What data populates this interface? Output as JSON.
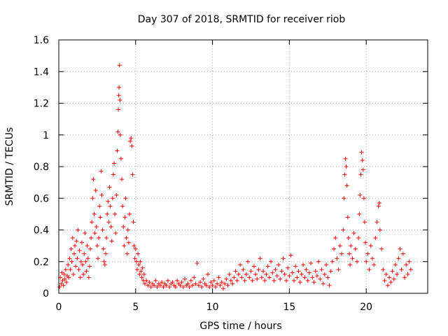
{
  "chart_data": {
    "type": "scatter",
    "title": "Day 307 of 2018, SRMTID for receiver riob",
    "xlabel": "GPS time / hours",
    "ylabel": "SRMTID / TECUs",
    "xlim": [
      0,
      24
    ],
    "ylim": [
      0,
      1.6
    ],
    "x_ticks": [
      0,
      5,
      10,
      15,
      20
    ],
    "x_tick_labels": [
      "0",
      "5",
      "10",
      "15",
      "20"
    ],
    "y_ticks": [
      0,
      0.2,
      0.4,
      0.6,
      0.8,
      1.0,
      1.2,
      1.4,
      1.6
    ],
    "y_tick_labels": [
      "0",
      "0.2",
      "0.4",
      "0.6",
      "0.8",
      "1",
      "1.2",
      "1.4",
      "1.6"
    ],
    "grid": true,
    "marker": "+",
    "color": "#ff0000",
    "series": [
      {
        "name": "SRMTID",
        "points": [
          [
            0.05,
            0.04
          ],
          [
            0.1,
            0.1
          ],
          [
            0.15,
            0.06
          ],
          [
            0.2,
            0.13
          ],
          [
            0.25,
            0.08
          ],
          [
            0.3,
            0.05
          ],
          [
            0.35,
            0.12
          ],
          [
            0.4,
            0.09
          ],
          [
            0.45,
            0.15
          ],
          [
            0.5,
            0.07
          ],
          [
            0.55,
            0.11
          ],
          [
            0.6,
            0.18
          ],
          [
            0.65,
            0.1
          ],
          [
            0.7,
            0.22
          ],
          [
            0.75,
            0.15
          ],
          [
            0.8,
            0.28
          ],
          [
            0.85,
            0.2
          ],
          [
            0.9,
            0.35
          ],
          [
            0.95,
            0.12
          ],
          [
            1.0,
            0.25
          ],
          [
            1.05,
            0.3
          ],
          [
            1.1,
            0.17
          ],
          [
            1.15,
            0.33
          ],
          [
            1.2,
            0.22
          ],
          [
            1.25,
            0.4
          ],
          [
            1.3,
            0.15
          ],
          [
            1.35,
            0.27
          ],
          [
            1.4,
            0.1
          ],
          [
            1.45,
            0.2
          ],
          [
            1.5,
            0.32
          ],
          [
            1.55,
            0.18
          ],
          [
            1.6,
            0.12
          ],
          [
            1.65,
            0.25
          ],
          [
            1.7,
            0.38
          ],
          [
            1.75,
            0.2
          ],
          [
            1.8,
            0.14
          ],
          [
            1.85,
            0.3
          ],
          [
            1.9,
            0.22
          ],
          [
            1.95,
            0.1
          ],
          [
            2.0,
            0.17
          ],
          [
            2.05,
            0.28
          ],
          [
            2.1,
            0.35
          ],
          [
            2.15,
            0.45
          ],
          [
            2.2,
            0.6
          ],
          [
            2.25,
            0.72
          ],
          [
            2.3,
            0.5
          ],
          [
            2.35,
            0.38
          ],
          [
            2.4,
            0.65
          ],
          [
            2.45,
            0.42
          ],
          [
            2.5,
            0.3
          ],
          [
            2.55,
            0.22
          ],
          [
            2.6,
            0.35
          ],
          [
            2.65,
            0.55
          ],
          [
            2.7,
            0.48
          ],
          [
            2.75,
            0.77
          ],
          [
            2.8,
            0.62
          ],
          [
            2.85,
            0.4
          ],
          [
            2.9,
            0.28
          ],
          [
            2.95,
            0.2
          ],
          [
            3.0,
            0.18
          ],
          [
            3.05,
            0.25
          ],
          [
            3.1,
            0.35
          ],
          [
            3.15,
            0.5
          ],
          [
            3.2,
            0.58
          ],
          [
            3.25,
            0.45
          ],
          [
            3.3,
            0.67
          ],
          [
            3.35,
            0.55
          ],
          [
            3.4,
            0.42
          ],
          [
            3.45,
            0.33
          ],
          [
            3.5,
            0.6
          ],
          [
            3.55,
            0.75
          ],
          [
            3.6,
            0.82
          ],
          [
            3.65,
            0.5
          ],
          [
            3.7,
            0.38
          ],
          [
            3.75,
            0.62
          ],
          [
            3.8,
            0.9
          ],
          [
            3.85,
            1.02
          ],
          [
            3.88,
            1.16
          ],
          [
            3.9,
            1.25
          ],
          [
            3.92,
            1.3
          ],
          [
            3.95,
            1.44
          ],
          [
            3.98,
            1.22
          ],
          [
            4.0,
            1.0
          ],
          [
            4.05,
            0.85
          ],
          [
            4.1,
            0.72
          ],
          [
            4.15,
            0.55
          ],
          [
            4.2,
            0.42
          ],
          [
            4.25,
            0.3
          ],
          [
            4.3,
            0.48
          ],
          [
            4.35,
            0.6
          ],
          [
            4.4,
            0.35
          ],
          [
            4.45,
            0.25
          ],
          [
            4.5,
            0.4
          ],
          [
            4.55,
            0.32
          ],
          [
            4.6,
            0.5
          ],
          [
            4.65,
            0.96
          ],
          [
            4.7,
            0.98
          ],
          [
            4.75,
            0.93
          ],
          [
            4.8,
            0.75
          ],
          [
            4.85,
            0.45
          ],
          [
            4.9,
            0.3
          ],
          [
            4.95,
            0.22
          ],
          [
            5.0,
            0.28
          ],
          [
            5.05,
            0.2
          ],
          [
            5.1,
            0.15
          ],
          [
            5.15,
            0.25
          ],
          [
            5.2,
            0.18
          ],
          [
            5.25,
            0.12
          ],
          [
            5.3,
            0.2
          ],
          [
            5.35,
            0.14
          ],
          [
            5.4,
            0.1
          ],
          [
            5.45,
            0.16
          ],
          [
            5.5,
            0.08
          ],
          [
            5.55,
            0.12
          ],
          [
            5.6,
            0.06
          ],
          [
            5.7,
            0.08
          ],
          [
            5.8,
            0.05
          ],
          [
            5.9,
            0.07
          ],
          [
            6.0,
            0.04
          ],
          [
            6.1,
            0.06
          ],
          [
            6.2,
            0.05
          ],
          [
            6.3,
            0.08
          ],
          [
            6.4,
            0.04
          ],
          [
            6.5,
            0.06
          ],
          [
            6.6,
            0.05
          ],
          [
            6.7,
            0.07
          ],
          [
            6.8,
            0.04
          ],
          [
            6.9,
            0.06
          ],
          [
            7.0,
            0.05
          ],
          [
            7.1,
            0.08
          ],
          [
            7.2,
            0.04
          ],
          [
            7.3,
            0.06
          ],
          [
            7.4,
            0.07
          ],
          [
            7.5,
            0.05
          ],
          [
            7.6,
            0.04
          ],
          [
            7.7,
            0.08
          ],
          [
            7.8,
            0.06
          ],
          [
            7.9,
            0.05
          ],
          [
            8.0,
            0.07
          ],
          [
            8.1,
            0.04
          ],
          [
            8.2,
            0.09
          ],
          [
            8.3,
            0.05
          ],
          [
            8.4,
            0.06
          ],
          [
            8.5,
            0.04
          ],
          [
            8.6,
            0.08
          ],
          [
            8.7,
            0.05
          ],
          [
            8.8,
            0.1
          ],
          [
            8.9,
            0.06
          ],
          [
            9.0,
            0.19
          ],
          [
            9.1,
            0.05
          ],
          [
            9.2,
            0.07
          ],
          [
            9.3,
            0.04
          ],
          [
            9.4,
            0.09
          ],
          [
            9.5,
            0.06
          ],
          [
            9.6,
            0.05
          ],
          [
            9.7,
            0.12
          ],
          [
            9.8,
            0.04
          ],
          [
            9.9,
            0.07
          ],
          [
            10.0,
            0.05
          ],
          [
            10.1,
            0.08
          ],
          [
            10.2,
            0.04
          ],
          [
            10.3,
            0.06
          ],
          [
            10.4,
            0.1
          ],
          [
            10.5,
            0.05
          ],
          [
            10.6,
            0.07
          ],
          [
            10.7,
            0.03
          ],
          [
            10.8,
            0.06
          ],
          [
            10.9,
            0.09
          ],
          [
            11.0,
            0.05
          ],
          [
            11.1,
            0.12
          ],
          [
            11.2,
            0.08
          ],
          [
            11.3,
            0.06
          ],
          [
            11.4,
            0.1
          ],
          [
            11.5,
            0.14
          ],
          [
            11.6,
            0.08
          ],
          [
            11.7,
            0.12
          ],
          [
            11.8,
            0.18
          ],
          [
            11.9,
            0.1
          ],
          [
            12.0,
            0.15
          ],
          [
            12.1,
            0.08
          ],
          [
            12.2,
            0.12
          ],
          [
            12.3,
            0.2
          ],
          [
            12.4,
            0.1
          ],
          [
            12.5,
            0.14
          ],
          [
            12.6,
            0.08
          ],
          [
            12.7,
            0.17
          ],
          [
            12.8,
            0.12
          ],
          [
            12.9,
            0.09
          ],
          [
            13.0,
            0.15
          ],
          [
            13.1,
            0.22
          ],
          [
            13.2,
            0.1
          ],
          [
            13.3,
            0.14
          ],
          [
            13.4,
            0.08
          ],
          [
            13.5,
            0.12
          ],
          [
            13.6,
            0.17
          ],
          [
            13.7,
            0.1
          ],
          [
            13.8,
            0.2
          ],
          [
            13.9,
            0.13
          ],
          [
            14.0,
            0.08
          ],
          [
            14.1,
            0.15
          ],
          [
            14.2,
            0.11
          ],
          [
            14.3,
            0.18
          ],
          [
            14.4,
            0.09
          ],
          [
            14.5,
            0.14
          ],
          [
            14.6,
            0.22
          ],
          [
            14.7,
            0.12
          ],
          [
            14.8,
            0.08
          ],
          [
            14.9,
            0.16
          ],
          [
            15.0,
            0.11
          ],
          [
            15.1,
            0.24
          ],
          [
            15.2,
            0.13
          ],
          [
            15.3,
            0.08
          ],
          [
            15.4,
            0.17
          ],
          [
            15.5,
            0.1
          ],
          [
            15.6,
            0.14
          ],
          [
            15.7,
            0.07
          ],
          [
            15.8,
            0.12
          ],
          [
            15.9,
            0.18
          ],
          [
            16.0,
            0.1
          ],
          [
            16.1,
            0.15
          ],
          [
            16.2,
            0.08
          ],
          [
            16.3,
            0.13
          ],
          [
            16.4,
            0.19
          ],
          [
            16.5,
            0.1
          ],
          [
            16.6,
            0.07
          ],
          [
            16.7,
            0.14
          ],
          [
            16.8,
            0.11
          ],
          [
            16.9,
            0.2
          ],
          [
            17.0,
            0.09
          ],
          [
            17.1,
            0.15
          ],
          [
            17.2,
            0.06
          ],
          [
            17.3,
            0.12
          ],
          [
            17.4,
            0.18
          ],
          [
            17.5,
            0.1
          ],
          [
            17.6,
            0.05
          ],
          [
            17.7,
            0.14
          ],
          [
            17.8,
            0.2
          ],
          [
            17.9,
            0.28
          ],
          [
            18.0,
            0.35
          ],
          [
            18.1,
            0.22
          ],
          [
            18.2,
            0.15
          ],
          [
            18.3,
            0.3
          ],
          [
            18.4,
            0.25
          ],
          [
            18.5,
            0.4
          ],
          [
            18.55,
            0.6
          ],
          [
            18.6,
            0.75
          ],
          [
            18.65,
            0.85
          ],
          [
            18.7,
            0.8
          ],
          [
            18.75,
            0.68
          ],
          [
            18.8,
            0.48
          ],
          [
            18.85,
            0.35
          ],
          [
            18.9,
            0.25
          ],
          [
            18.95,
            0.18
          ],
          [
            19.0,
            0.3
          ],
          [
            19.1,
            0.22
          ],
          [
            19.2,
            0.38
          ],
          [
            19.3,
            0.28
          ],
          [
            19.4,
            0.2
          ],
          [
            19.5,
            0.35
          ],
          [
            19.55,
            0.5
          ],
          [
            19.6,
            0.62
          ],
          [
            19.65,
            0.75
          ],
          [
            19.7,
            0.89
          ],
          [
            19.75,
            0.84
          ],
          [
            19.8,
            0.78
          ],
          [
            19.85,
            0.6
          ],
          [
            19.9,
            0.45
          ],
          [
            19.95,
            0.32
          ],
          [
            20.0,
            0.2
          ],
          [
            20.1,
            0.25
          ],
          [
            20.2,
            0.15
          ],
          [
            20.3,
            0.3
          ],
          [
            20.4,
            0.22
          ],
          [
            20.5,
            0.18
          ],
          [
            20.6,
            0.35
          ],
          [
            20.7,
            0.45
          ],
          [
            20.8,
            0.55
          ],
          [
            20.85,
            0.57
          ],
          [
            20.9,
            0.4
          ],
          [
            21.0,
            0.28
          ],
          [
            21.1,
            0.15
          ],
          [
            21.2,
            0.08
          ],
          [
            21.3,
            0.12
          ],
          [
            21.4,
            0.05
          ],
          [
            21.5,
            0.1
          ],
          [
            21.6,
            0.07
          ],
          [
            21.7,
            0.14
          ],
          [
            21.8,
            0.09
          ],
          [
            21.9,
            0.18
          ],
          [
            22.0,
            0.12
          ],
          [
            22.1,
            0.22
          ],
          [
            22.2,
            0.28
          ],
          [
            22.3,
            0.15
          ],
          [
            22.4,
            0.25
          ],
          [
            22.5,
            0.1
          ],
          [
            22.6,
            0.18
          ],
          [
            22.7,
            0.12
          ],
          [
            22.8,
            0.2
          ],
          [
            22.9,
            0.15
          ]
        ]
      }
    ]
  }
}
